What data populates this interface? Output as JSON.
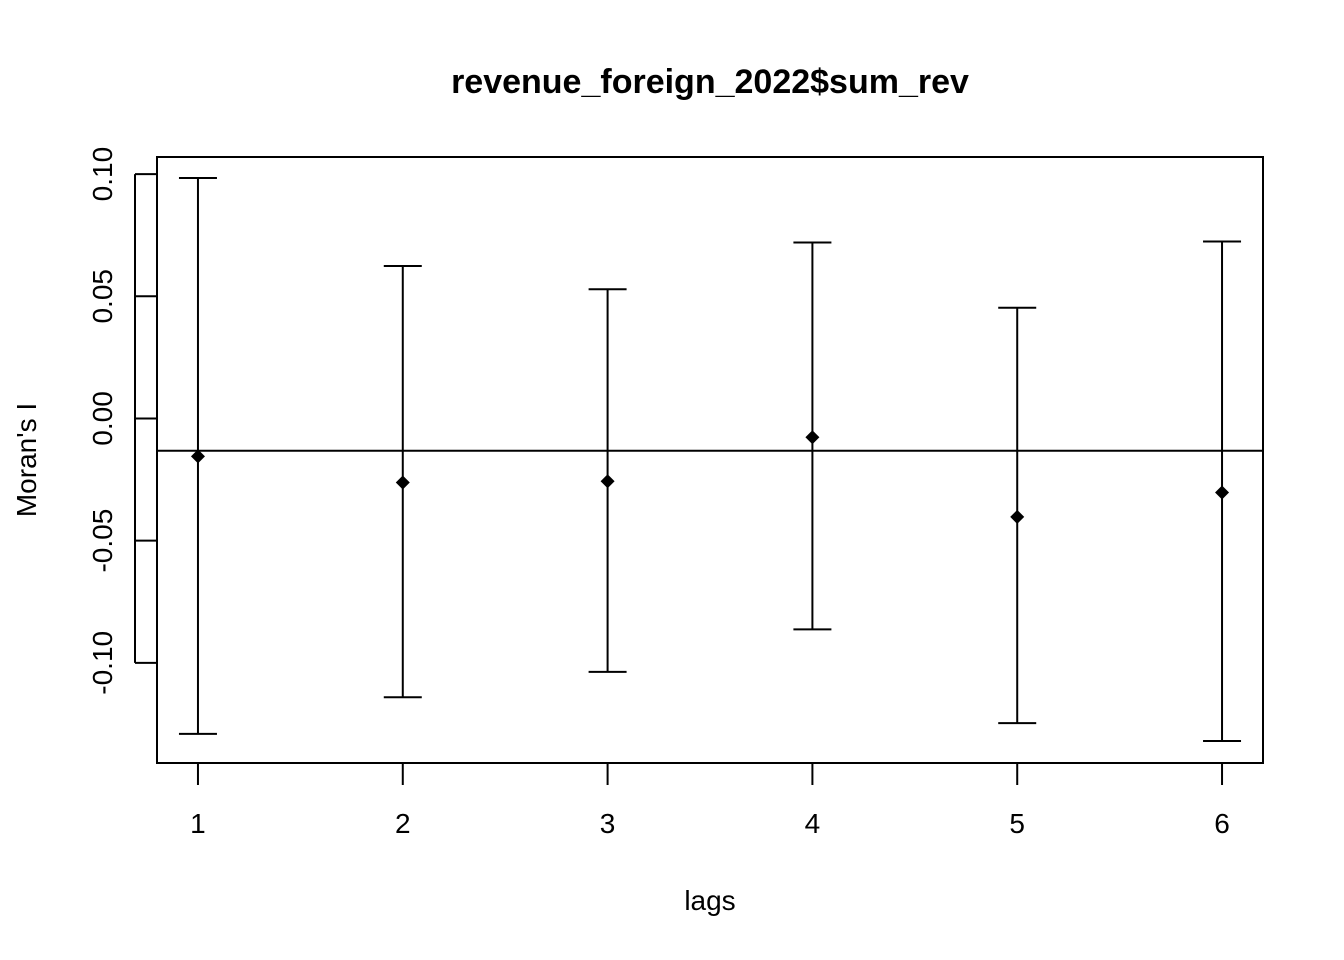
{
  "chart_data": {
    "type": "scatter",
    "title": "revenue_foreign_2022$sum_rev",
    "xlabel": "lags",
    "ylabel": "Moran's  I",
    "x": [
      1,
      2,
      3,
      4,
      5,
      6
    ],
    "x_ticks": [
      "1",
      "2",
      "3",
      "4",
      "5",
      "6"
    ],
    "y_ticks": [
      "-0.10",
      "-0.05",
      "0.00",
      "0.05",
      "0.10"
    ],
    "xlim": [
      0.8,
      6.2
    ],
    "ylim": [
      -0.141,
      0.107
    ],
    "series": [
      {
        "values": [
          -0.0155,
          -0.0262,
          -0.0257,
          -0.0077,
          -0.0403,
          -0.0303
        ],
        "lower": [
          -0.1291,
          -0.1141,
          -0.1037,
          -0.0863,
          -0.1247,
          -0.132
        ],
        "upper": [
          0.0984,
          0.0624,
          0.0529,
          0.072,
          0.0453,
          0.0724
        ]
      }
    ],
    "reference_line": -0.0132,
    "grid": false,
    "legend": "none",
    "marker": "diamond",
    "color": "#000000"
  }
}
